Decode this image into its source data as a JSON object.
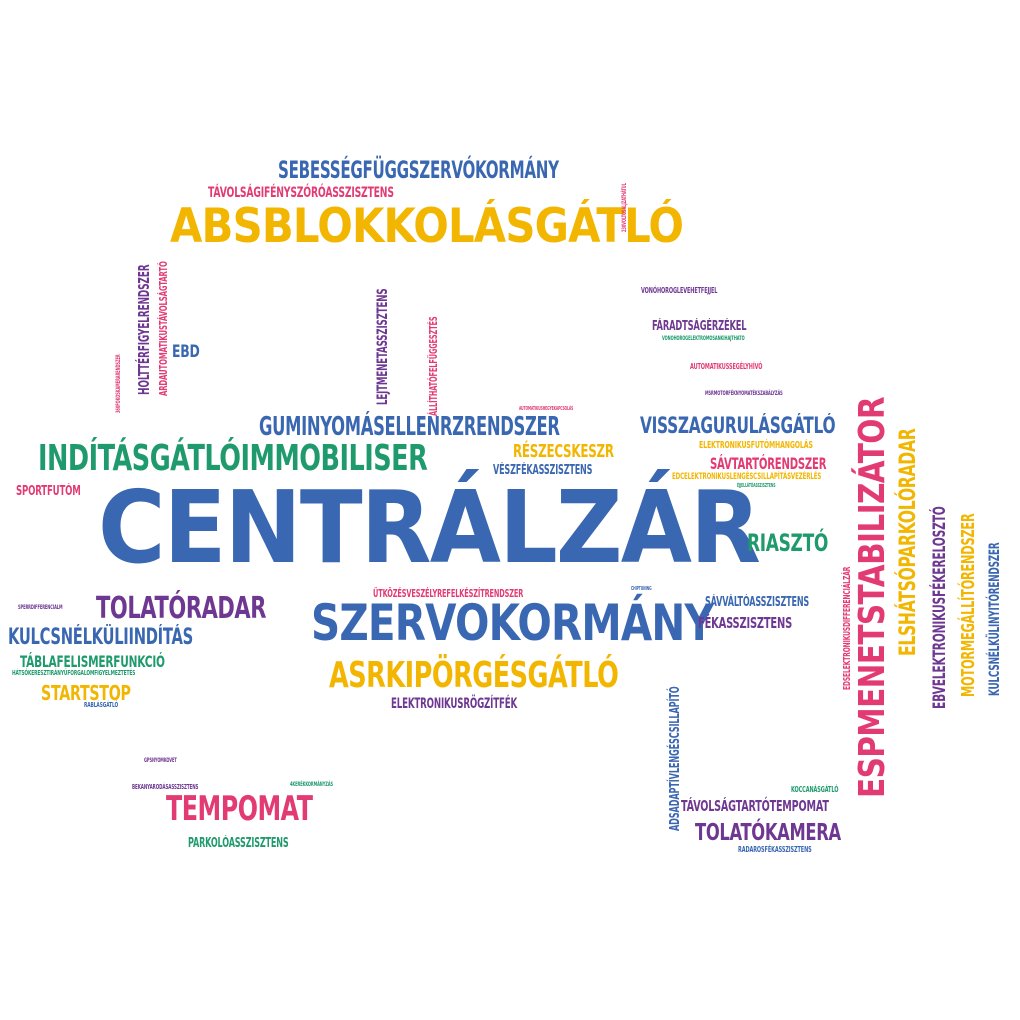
{
  "colors": {
    "blue": "#3a67b1",
    "yellow": "#f2b600",
    "green": "#1f9a6c",
    "pink": "#e23b73",
    "purple": "#6e3791"
  },
  "words": [
    {
      "name": "word-centralzar",
      "text": "CENTRÁLZÁR",
      "color": "blue",
      "orient": "horizontal"
    },
    {
      "name": "word-absblokkolasgatlo",
      "text": "ABSBLOKKOLÁSGÁTLÓ",
      "color": "yellow",
      "orient": "horizontal"
    },
    {
      "name": "word-szervokormany",
      "text": "SZERVOKORMÁNY",
      "color": "blue",
      "orient": "horizontal"
    },
    {
      "name": "word-espmenetstabilizator",
      "text": "ESPMENETSTABILIZÁTOR",
      "color": "pink",
      "orient": "vertical"
    },
    {
      "name": "word-inditasgatloimmobiliser",
      "text": "INDÍTÁSGÁTLÓIMMOBILISER",
      "color": "green",
      "orient": "horizontal"
    },
    {
      "name": "word-asrkiporgesgatlo",
      "text": "ASRKIPÖRGÉSGÁTLÓ",
      "color": "yellow",
      "orient": "horizontal"
    },
    {
      "name": "word-sebessegfuggszervokormany",
      "text": "SEBESSÉGFÜGGSZERVÓKORMÁNY",
      "color": "blue",
      "orient": "horizontal"
    },
    {
      "name": "word-guminyomasellenrzrendszer",
      "text": "GUMINYOMÁSELLENRZRENDSZER",
      "color": "blue",
      "orient": "horizontal"
    },
    {
      "name": "word-tempomat",
      "text": "TEMPOMAT",
      "color": "pink",
      "orient": "horizontal"
    },
    {
      "name": "word-tolatoradar",
      "text": "TOLATÓRADAR",
      "color": "purple",
      "orient": "horizontal"
    },
    {
      "name": "word-visszagurulasgatlo",
      "text": "VISSZAGURULÁSGÁTLÓ",
      "color": "blue",
      "orient": "horizontal"
    },
    {
      "name": "word-elshatsoparkoloradar",
      "text": "ELSHÁTSÓPARKOLÓRADAR",
      "color": "yellow",
      "orient": "vertical"
    },
    {
      "name": "word-kulcsnelkuliinditas",
      "text": "KULCSNÉLKÜLIINDÍTÁS",
      "color": "blue",
      "orient": "horizontal"
    },
    {
      "name": "word-tolatokamera",
      "text": "TOLATÓKAMERA",
      "color": "purple",
      "orient": "horizontal"
    },
    {
      "name": "word-riaszto",
      "text": "RIASZTÓ",
      "color": "green",
      "orient": "horizontal"
    },
    {
      "name": "word-tavolsagifenyszoroasszisztens",
      "text": "TÁVOLSÁGIFÉNYSZÓRÓASSZISZTENS",
      "color": "pink",
      "orient": "horizontal"
    },
    {
      "name": "word-motormegallitorendszer",
      "text": "MOTORMEGÁLLÍTÓRENDSZER",
      "color": "yellow",
      "orient": "vertical"
    },
    {
      "name": "word-ebvelektronikusfekereloszto",
      "text": "EBVELEKTRONIKUSFÉKERELOSZTÓ",
      "color": "purple",
      "orient": "vertical"
    },
    {
      "name": "word-startstop",
      "text": "STARTSTOP",
      "color": "yellow",
      "orient": "horizontal"
    },
    {
      "name": "word-tablafelismerfunkcio",
      "text": "TÁBLAFELISMERFUNKCIÓ",
      "color": "green",
      "orient": "horizontal"
    },
    {
      "name": "word-kulcsnelkulinyitorendszer",
      "text": "KULCSNÉLKÜLINYITÓRENDSZER",
      "color": "blue",
      "orient": "vertical"
    },
    {
      "name": "word-holtterfigyelrendszer",
      "text": "HOLTTÉRFIGYELRENDSZER",
      "color": "purple",
      "orient": "vertical"
    },
    {
      "name": "word-reszecskeszr",
      "text": "RÉSZECSKESZR",
      "color": "yellow",
      "orient": "horizontal"
    },
    {
      "name": "word-savtartorendszer",
      "text": "SÁVTARTÓRENDSZER",
      "color": "pink",
      "orient": "horizontal"
    },
    {
      "name": "word-tavolsagtartotempomat",
      "text": "TÁVOLSÁGTARTÓTEMPOMAT",
      "color": "purple",
      "orient": "horizontal"
    },
    {
      "name": "word-ebd",
      "text": "EBD",
      "color": "blue",
      "orient": "horizontal"
    },
    {
      "name": "word-lejtmenetasszisztens",
      "text": "LEJTMENETASSZISZTENS",
      "color": "purple",
      "orient": "vertical"
    },
    {
      "name": "word-fekasszisztens",
      "text": "FÉKASSZISZTENS",
      "color": "purple",
      "orient": "horizontal"
    },
    {
      "name": "word-sportfutom",
      "text": "SPORTFUTÓM",
      "color": "pink",
      "orient": "horizontal"
    },
    {
      "name": "word-elektronikusrogzitfek",
      "text": "ELEKTRONIKUSRÖGZÍTFÉK",
      "color": "purple",
      "orient": "horizontal"
    },
    {
      "name": "word-fardtsagerzekel",
      "text": "FÁRADTSÁGÉRZÉKEL",
      "color": "purple",
      "orient": "horizontal"
    },
    {
      "name": "word-adsadaptivlengescsillapito",
      "text": "ADSADAPTÍVLENGÉSCSILLAPÍTÓ",
      "color": "blue",
      "orient": "vertical"
    },
    {
      "name": "word-savvaltoasszisztens",
      "text": "SÁVVÁLTÓASSZISZTENS",
      "color": "blue",
      "orient": "horizontal"
    },
    {
      "name": "word-veszfekasszisztens",
      "text": "VÉSZFÉKASSZISZTENS",
      "color": "blue",
      "orient": "horizontal"
    },
    {
      "name": "word-parkoloasszisztens",
      "text": "PARKOLÓASSZISZTENS",
      "color": "green",
      "orient": "horizontal"
    },
    {
      "name": "word-ardautomatikustavolsagtarto",
      "text": "ARDAUTOMATIKUSTÁVOLSÁGTARTÓ",
      "color": "pink",
      "orient": "vertical"
    },
    {
      "name": "word-allithatofelfuggesztes",
      "text": "ÁLLÍTHATÓFELFÜGGESZTÉS",
      "color": "pink",
      "orient": "vertical"
    },
    {
      "name": "word-utkozesveszelyrefelkeszitrendszer",
      "text": "ÜTKÖZÉSVESZÉLYREFELKÉSZÍTRENDSZER",
      "color": "pink",
      "orient": "horizontal"
    },
    {
      "name": "word-elektronikusfutomhangolas",
      "text": "ELEKTRONIKUSFUTÓMHANGOLÁS",
      "color": "yellow",
      "orient": "horizontal"
    },
    {
      "name": "word-edselektronikusdifferencialzar",
      "text": "EDSELEKTRONIKUSDIFFERENCIÁLZÁR",
      "color": "pink",
      "orient": "vertical"
    },
    {
      "name": "word-edcelektronikuslengescsillapitasvezerles",
      "text": "EDCELEKTRONIKUSLENGÉSCSILLAPÍTÁSVEZÉRLÉS",
      "color": "yellow",
      "orient": "horizontal"
    },
    {
      "name": "word-automatikussegelyhivo",
      "text": "AUTOMATIKUSSEGÉLYHÍVÓ",
      "color": "pink",
      "orient": "horizontal"
    },
    {
      "name": "word-vonohoroglevehetfejjel",
      "text": "VONÓHOROGLEVEHETFEJJEL",
      "color": "purple",
      "orient": "horizontal"
    },
    {
      "name": "word-koccanasgatlo",
      "text": "KOCCANÁSGÁTLÓ",
      "color": "green",
      "orient": "horizontal"
    },
    {
      "name": "word-radarosfekasszisztens",
      "text": "RADAROSFÉKASSZISZTENS",
      "color": "blue",
      "orient": "horizontal"
    },
    {
      "name": "word-hatsokereszt",
      "text": "HÁTSÓKERESZTIRÁNYÚFORGALOMFIGYELMEZTETÉS",
      "color": "green",
      "orient": "horizontal"
    },
    {
      "name": "word-rablasgatlo",
      "text": "RABLÁSGÁTLÓ",
      "color": "blue",
      "orient": "horizontal"
    },
    {
      "name": "word-bekanyarodasasszisztens",
      "text": "BEKANYARODÁSASSZISZTENS",
      "color": "purple",
      "orient": "horizontal"
    },
    {
      "name": "word-gpsnyomkovet",
      "text": "GPSNYOMKÖVET",
      "color": "purple",
      "orient": "horizontal"
    },
    {
      "name": "word-4kerekeskormanyzas",
      "text": "4KERÉKKORMÁNYZÁS",
      "color": "green",
      "orient": "horizontal"
    },
    {
      "name": "word-sperrdifferencialm",
      "text": "SPERRDIFFERENCIÁLM",
      "color": "purple",
      "orient": "horizontal"
    },
    {
      "name": "word-vonohoroglelektromosankihajthato",
      "text": "VONÓHOROGELEKTROMOSANKIHAJTHATÓ",
      "color": "green",
      "orient": "horizontal"
    },
    {
      "name": "word-msrmotorfekenyomatekszabalyzas",
      "text": "MSRMOTORFÉKNYOMATÉKSZABÁLYZÁS",
      "color": "purple",
      "orient": "horizontal"
    },
    {
      "name": "word-automatikusvegsebessegkapcsolas",
      "text": "AUTOMATIKUSHEGYEKAPCSOLÁS",
      "color": "pink",
      "orient": "horizontal"
    },
    {
      "name": "word-ejjellatoasszisztens",
      "text": "ÉJJELLÁTÓASSZISZTENS",
      "color": "green",
      "orient": "horizontal"
    },
    {
      "name": "word-chiptuning",
      "text": "CHIPTUNING",
      "color": "blue",
      "orient": "horizontal"
    },
    {
      "name": "word-360fokoskamerarendszer",
      "text": "360FOKOSKAMERARENDSZER",
      "color": "pink",
      "orient": "vertical"
    },
    {
      "name": "word-230voltosaljzat",
      "text": "230VOLTOSALJZATHÁTUL",
      "color": "pink",
      "orient": "vertical"
    }
  ]
}
